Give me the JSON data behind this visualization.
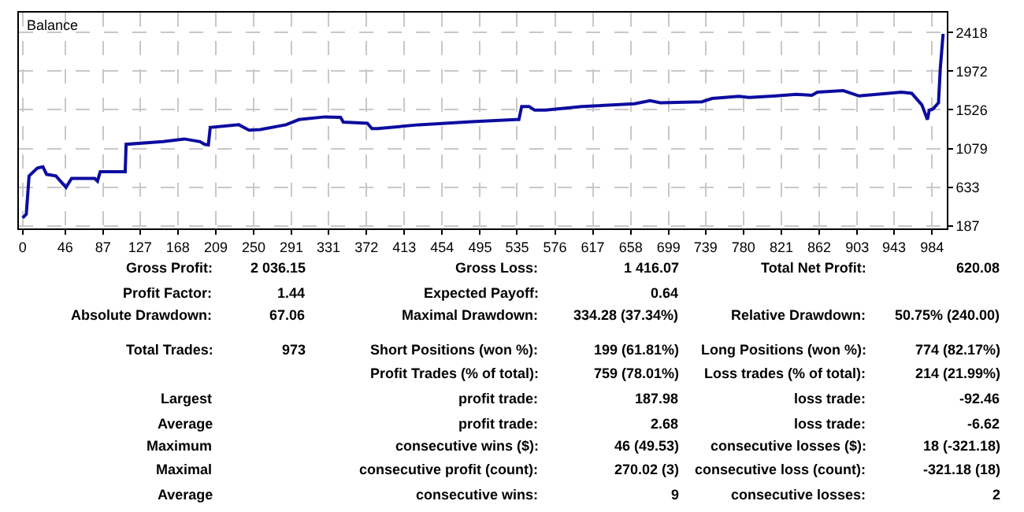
{
  "chart_data": {
    "type": "line",
    "title": "Balance",
    "x": [
      0,
      4,
      7,
      16,
      22,
      26,
      36,
      47,
      53,
      78,
      81,
      84,
      111,
      112,
      152,
      175,
      192,
      197,
      201,
      203,
      234,
      245,
      257,
      285,
      299,
      327,
      344,
      347,
      373,
      378,
      384,
      429,
      486,
      534,
      537,
      540,
      548,
      554,
      566,
      605,
      662,
      679,
      690,
      735,
      746,
      775,
      786,
      815,
      837,
      854,
      860,
      888,
      905,
      951,
      962,
      973,
      979,
      981,
      985,
      991,
      993,
      996
    ],
    "series": [
      {
        "color": "#0c0ca0",
        "values": [
          278,
          320,
          763,
          854,
          867,
          781,
          763,
          630,
          734,
          734,
          703,
          812,
          812,
          1128,
          1159,
          1190,
          1159,
          1128,
          1122,
          1323,
          1354,
          1292,
          1298,
          1354,
          1414,
          1445,
          1439,
          1384,
          1372,
          1310,
          1310,
          1354,
          1390,
          1414,
          1414,
          1565,
          1565,
          1523,
          1523,
          1565,
          1596,
          1633,
          1608,
          1620,
          1657,
          1682,
          1670,
          1688,
          1706,
          1694,
          1730,
          1748,
          1687,
          1730,
          1718,
          1584,
          1414,
          1523,
          1536,
          1608,
          2010,
          2404
        ]
      }
    ],
    "xlim": [
      -4,
      1000
    ],
    "ylim": [
      156,
      2650
    ],
    "xticks": [
      0,
      46,
      87,
      127,
      168,
      209,
      250,
      291,
      331,
      372,
      413,
      454,
      495,
      535,
      576,
      617,
      658,
      699,
      739,
      780,
      821,
      862,
      903,
      943,
      984
    ],
    "yticks": [
      187,
      633,
      1079,
      1526,
      1972,
      2418
    ],
    "grid": true,
    "line_style": "solid",
    "marker": "none",
    "annotations": [
      "Gross Profit:",
      "2 036.15",
      "Gross Loss:",
      "1 416.07",
      "Total Net Profit:",
      "620.08",
      "Profit Factor:",
      "1.44",
      "Expected Payoff:",
      "0.64",
      "Absolute Drawdown:",
      "67.06",
      "Maximal Drawdown:",
      "334.28 (37.34%)",
      "Relative Drawdown:",
      "50.75% (240.00)",
      "Total Trades:",
      "973",
      "Short Positions (won %):",
      "199 (61.81%)",
      "Long Positions (won %):",
      "774 (82.17%)",
      "Profit Trades (% of total):",
      "759 (78.01%)",
      "Loss trades (% of total):",
      "214 (21.99%)",
      "Largest",
      "profit trade:",
      "187.98",
      "loss trade:",
      "-92.46",
      "Average",
      "profit trade:",
      "2.68",
      "loss trade:",
      "-6.62",
      "Maximum",
      "consecutive wins ($):",
      "46 (49.53)",
      "consecutive losses ($):",
      "18 (-321.18)",
      "Maximal",
      "consecutive profit (count):",
      "270.02 (3)",
      "consecutive loss (count):",
      "-321.18 (18)",
      "Average",
      "consecutive wins:",
      "9",
      "consecutive losses:",
      "2"
    ]
  }
}
